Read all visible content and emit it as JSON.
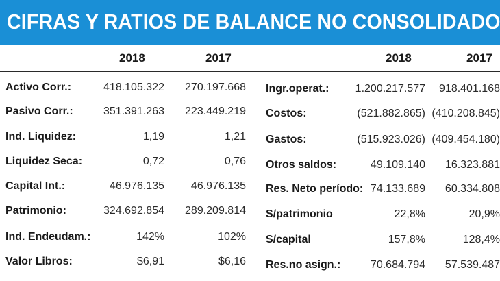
{
  "title": "CIFRAS Y RATIOS DE BALANCE NO CONSOLIDADO",
  "left": {
    "col_2018": "2018",
    "col_2017": "2017",
    "rows": [
      {
        "label": "Activo Corr.:",
        "v2018": "418.105.322",
        "v2017": "270.197.668"
      },
      {
        "label": "Pasivo Corr.:",
        "v2018": "351.391.263",
        "v2017": "223.449.219"
      },
      {
        "label": "Ind. Liquidez:",
        "v2018": "1,19",
        "v2017": "1,21"
      },
      {
        "label": "Liquidez Seca:",
        "v2018": "0,72",
        "v2017": "0,76"
      },
      {
        "label": "Capital Int.:",
        "v2018": "46.976.135",
        "v2017": "46.976.135"
      },
      {
        "label": "Patrimonio:",
        "v2018": "324.692.854",
        "v2017": "289.209.814"
      },
      {
        "label": "Ind. Endeudam.:",
        "v2018": "142%",
        "v2017": "102%"
      },
      {
        "label": "Valor Libros:",
        "v2018": "$6,91",
        "v2017": "$6,16"
      }
    ]
  },
  "right": {
    "col_2018": "2018",
    "col_2017": "2017",
    "rows": [
      {
        "label": "Ingr.operat.:",
        "v2018": "1.200.217.577",
        "v2017": "918.401.168"
      },
      {
        "label": "Costos:",
        "v2018": "(521.882.865)",
        "v2017": "(410.208.845)"
      },
      {
        "label": "Gastos:",
        "v2018": "(515.923.026)",
        "v2017": "(409.454.180)"
      },
      {
        "label": "Otros saldos:",
        "v2018": "49.109.140",
        "v2017": "16.323.881"
      },
      {
        "label": "Res. Neto período:",
        "v2018": "74.133.689",
        "v2017": "60.334.808"
      },
      {
        "label": "S/patrimonio",
        "v2018": "22,8%",
        "v2017": "20,9%"
      },
      {
        "label": "S/capital",
        "v2018": "157,8%",
        "v2017": "128,4%"
      },
      {
        "label": "Res.no asign.:",
        "v2018": "70.684.794",
        "v2017": "57.539.487"
      }
    ]
  }
}
